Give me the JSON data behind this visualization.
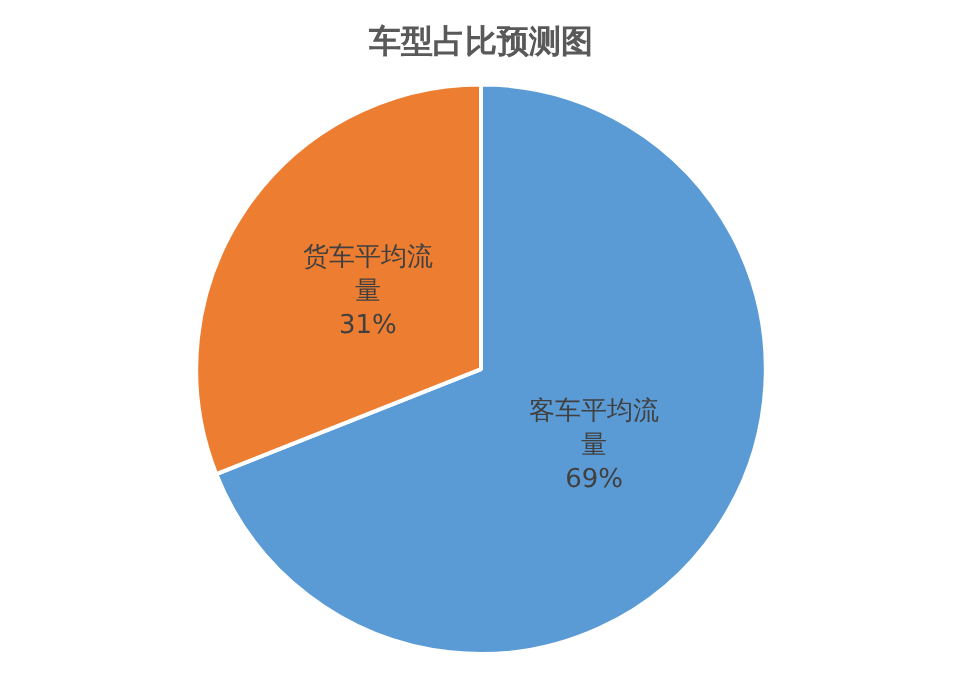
{
  "chart_data": {
    "type": "pie",
    "title": "车型占比预测图",
    "categories": [
      "客车平均流量",
      "货车平均流量"
    ],
    "values": [
      69,
      31
    ],
    "value_labels": [
      "69%",
      "31%"
    ],
    "colors": [
      "#5b9bd5",
      "#ed7d31"
    ],
    "legend": false
  }
}
